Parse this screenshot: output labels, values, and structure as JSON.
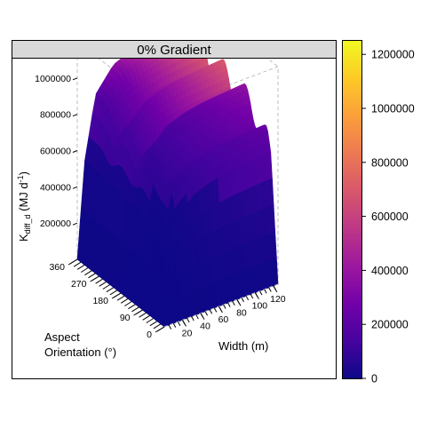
{
  "chart_data": {
    "type": "surface3d",
    "panel_title": "0% Gradient",
    "xlabel": "Width (m)",
    "ylabel_line1": "Aspect",
    "ylabel_line2": "Orientation (°)",
    "zlabel_main": "K",
    "zlabel_sub": "diff_d",
    "zlabel_unit": " (MJ d",
    "zlabel_sup": "-1",
    "zlabel_close": ")",
    "x_ticks": [
      "20",
      "40",
      "60",
      "80",
      "100",
      "120"
    ],
    "x_tick_values": [
      20,
      40,
      60,
      80,
      100,
      120
    ],
    "xlim": [
      0,
      125
    ],
    "y_ticks": [
      "0",
      "90",
      "180",
      "270",
      "360"
    ],
    "y_tick_values": [
      0,
      90,
      180,
      270,
      360
    ],
    "ylim": [
      0,
      360
    ],
    "z_ticks": [
      "200000",
      "400000",
      "600000",
      "800000",
      "1000000"
    ],
    "z_tick_values": [
      200000,
      400000,
      600000,
      800000,
      1000000
    ],
    "zlim": [
      0,
      1200000
    ],
    "colorbar_ticks": [
      "0",
      "200000",
      "400000",
      "600000",
      "800000",
      "1000000",
      "1200000"
    ],
    "colorbar_values": [
      0,
      200000,
      400000,
      600000,
      800000,
      1000000,
      1200000
    ],
    "colorbar_range": [
      0,
      1250000
    ],
    "colormap": "plasma",
    "plasma_stops": [
      "#0d0887",
      "#46039f",
      "#7201a8",
      "#9c179e",
      "#bd3786",
      "#d8576b",
      "#ed7953",
      "#fb9f3a",
      "#fdca26",
      "#f0f921"
    ],
    "surface_color": {
      "aspect": [
        0,
        90,
        180,
        270,
        360
      ],
      "width": [
        0,
        125
      ],
      "values": [
        [
          0,
          130000
        ],
        [
          0,
          280000
        ],
        [
          0,
          560000
        ],
        [
          0,
          780000
        ],
        [
          0,
          900000
        ]
      ]
    },
    "ridges": [
      {
        "aspect": [
          0,
          30,
          45,
          90,
          180,
          270,
          360
        ],
        "width": [
          0,
          8,
          20,
          40,
          60,
          80,
          100,
          125
        ],
        "values": [
          [
            0,
            0,
            0,
            0,
            0,
            0,
            0,
            0
          ],
          [
            0,
            280000,
            520000,
            620000,
            660000,
            680000,
            690000,
            700000
          ],
          [
            0,
            360000,
            640000,
            760000,
            800000,
            820000,
            830000,
            840000
          ],
          [
            0,
            460000,
            780000,
            900000,
            940000,
            960000,
            970000,
            980000
          ],
          [
            0,
            500000,
            840000,
            960000,
            1000000,
            1020000,
            1030000,
            1040000
          ],
          [
            0,
            520000,
            860000,
            990000,
            1030000,
            1050000,
            1060000,
            1070000
          ],
          [
            0,
            520000,
            870000,
            1000000,
            1040000,
            1060000,
            1070000,
            1080000
          ]
        ]
      }
    ],
    "valleys_at_aspect": [
      90,
      180,
      270
    ],
    "grid": false
  }
}
